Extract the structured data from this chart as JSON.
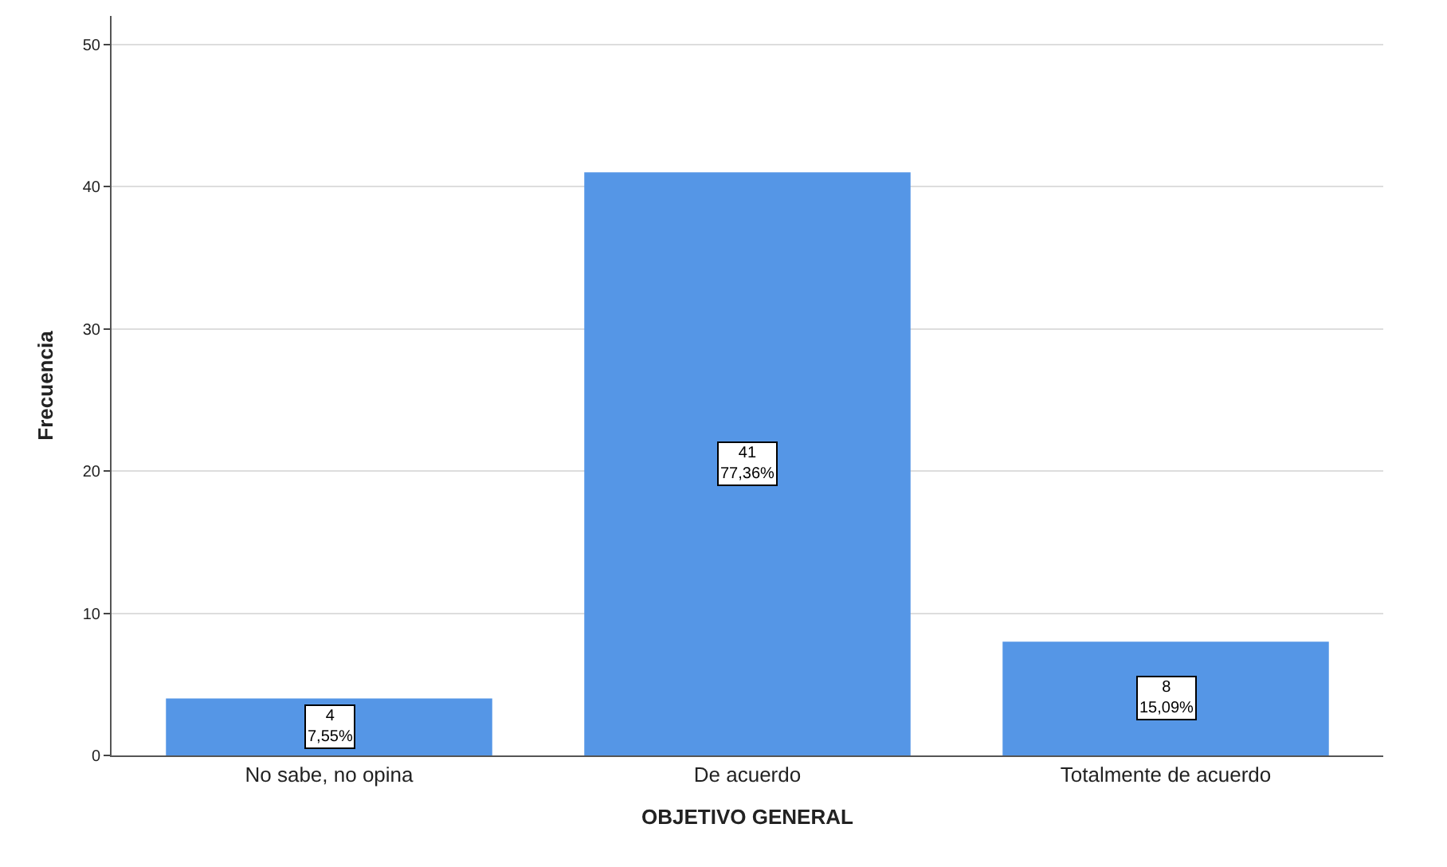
{
  "chart_data": {
    "type": "bar",
    "xlabel": "OBJETIVO GENERAL",
    "ylabel": "Frecuencia",
    "categories": [
      "No sabe, no opina",
      "De acuerdo",
      "Totalmente de acuerdo"
    ],
    "values": [
      4,
      41,
      8
    ],
    "color": "#5596e6",
    "value_labels": [
      "4\n7,55%",
      "41\n77,36%",
      "8\n15,09%"
    ],
    "ylim": [
      0,
      52
    ],
    "yticks": [
      0,
      10,
      20,
      30,
      40,
      50
    ],
    "grid": "y",
    "legend": false
  }
}
